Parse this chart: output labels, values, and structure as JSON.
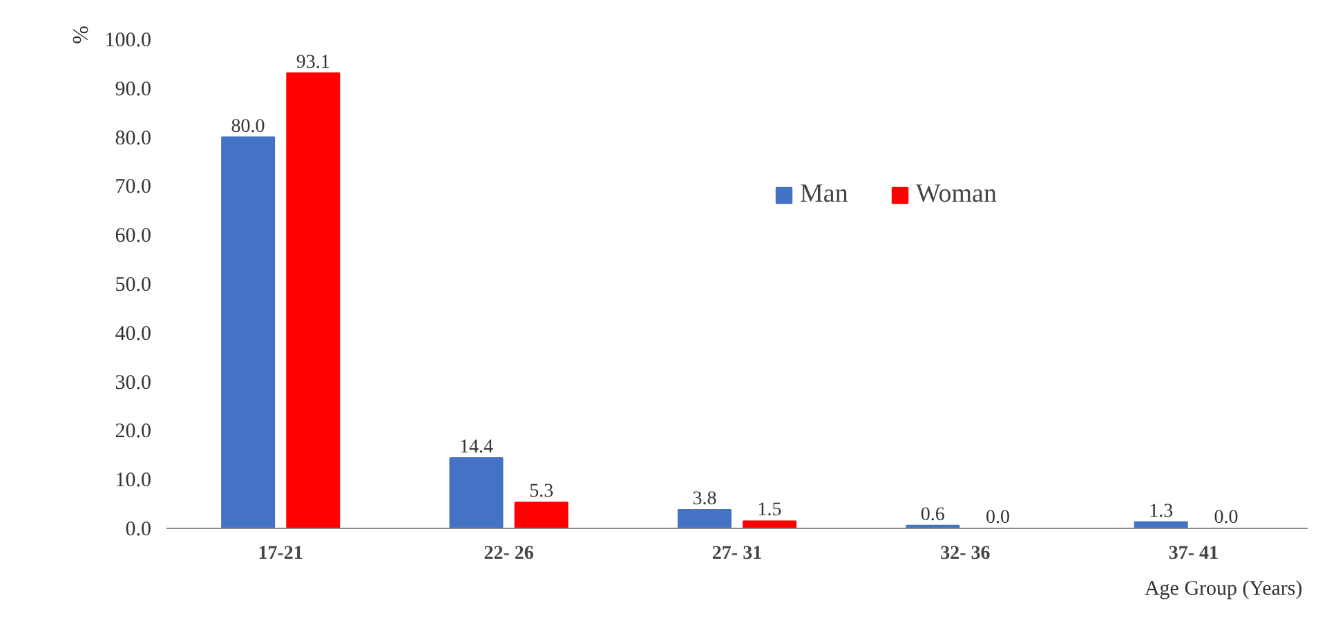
{
  "chart_data": {
    "type": "bar",
    "ylabel": "%",
    "xlabel": "Age  Group (Years)",
    "categories": [
      "17-21",
      "22- 26",
      "27- 31",
      "32- 36",
      "37- 41"
    ],
    "series": [
      {
        "name": "Man",
        "color": "#4472c4",
        "values": [
          80.0,
          14.4,
          3.8,
          0.6,
          1.3
        ],
        "value_labels": [
          "80.0",
          "14.4",
          "3.8",
          "0.6",
          "1.3"
        ]
      },
      {
        "name": "Woman",
        "color": "#ff0000",
        "values": [
          93.1,
          5.3,
          1.5,
          0.0,
          0.0
        ],
        "value_labels": [
          "93.1",
          "5.3",
          "1.5",
          "0.0",
          "0.0"
        ]
      }
    ],
    "ylim": [
      0,
      100
    ],
    "yticks": [
      {
        "value": 0,
        "label": "0.0"
      },
      {
        "value": 10,
        "label": "10.0"
      },
      {
        "value": 20,
        "label": "20.0"
      },
      {
        "value": 30,
        "label": "30.0"
      },
      {
        "value": 40,
        "label": "40.0"
      },
      {
        "value": 50,
        "label": "50.0"
      },
      {
        "value": 60,
        "label": "60.0"
      },
      {
        "value": 70,
        "label": "70.0"
      },
      {
        "value": 80,
        "label": "80.0"
      },
      {
        "value": 90,
        "label": "90.0"
      },
      {
        "value": 100,
        "label": "100.0"
      }
    ],
    "grid": false,
    "legend": "top right"
  }
}
